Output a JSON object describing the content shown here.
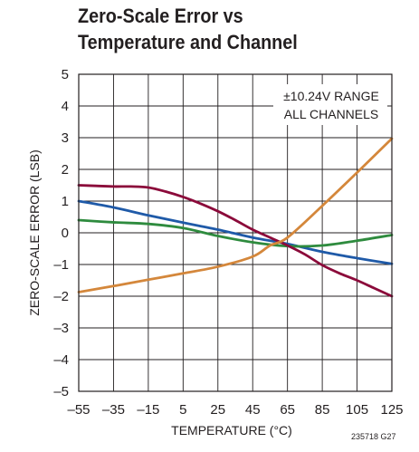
{
  "title_lines": [
    "Zero-Scale Error vs",
    "Temperature and Channel"
  ],
  "figure_id": "235718 G27",
  "chart_data": {
    "type": "line",
    "title": "Zero-Scale Error vs Temperature and Channel",
    "xlabel": "TEMPERATURE (°C)",
    "ylabel": "ZERO-SCALE ERROR (LSB)",
    "xlim": [
      -55,
      125
    ],
    "ylim": [
      -5,
      5
    ],
    "xticks": [
      -55,
      -35,
      -15,
      5,
      25,
      45,
      65,
      85,
      105,
      125
    ],
    "yticks": [
      5,
      4,
      3,
      2,
      1,
      0,
      -1,
      -2,
      -3,
      -4,
      -5
    ],
    "xtick_labels": [
      "–55",
      "–35",
      "–15",
      "5",
      "25",
      "45",
      "65",
      "85",
      "105",
      "125"
    ],
    "ytick_labels": [
      "5",
      "4",
      "3",
      "2",
      "1",
      "0",
      "–1",
      "–2",
      "–3",
      "–4",
      "–5"
    ],
    "grid": true,
    "annotation": [
      "±10.24V RANGE",
      "ALL CHANNELS"
    ],
    "series": [
      {
        "color": "#1f5aa8",
        "x": [
          -55,
          -35,
          -15,
          5,
          25,
          45,
          65,
          85,
          105,
          125
        ],
        "y": [
          1.0,
          0.8,
          0.55,
          0.32,
          0.1,
          -0.15,
          -0.35,
          -0.6,
          -0.8,
          -0.98
        ]
      },
      {
        "color": "#2e8b3e",
        "x": [
          -55,
          -35,
          -15,
          5,
          25,
          45,
          65,
          85,
          105,
          125
        ],
        "y": [
          0.4,
          0.33,
          0.28,
          0.15,
          -0.1,
          -0.3,
          -0.42,
          -0.4,
          -0.25,
          -0.07
        ]
      },
      {
        "color": "#8b0a3a",
        "x": [
          -55,
          -45,
          -35,
          -25,
          -15,
          -5,
          5,
          15,
          25,
          35,
          45,
          55,
          65,
          75,
          85,
          95,
          105,
          115,
          125
        ],
        "y": [
          1.5,
          1.48,
          1.46,
          1.46,
          1.43,
          1.3,
          1.13,
          0.92,
          0.68,
          0.4,
          0.1,
          -0.15,
          -0.4,
          -0.68,
          -1.02,
          -1.28,
          -1.5,
          -1.75,
          -2.0
        ]
      },
      {
        "color": "#d4873b",
        "x": [
          -55,
          -35,
          -15,
          5,
          25,
          45,
          55,
          65,
          85,
          105,
          125
        ],
        "y": [
          -1.87,
          -1.68,
          -1.48,
          -1.28,
          -1.07,
          -0.75,
          -0.4,
          -0.15,
          0.85,
          1.9,
          2.97
        ]
      }
    ]
  }
}
